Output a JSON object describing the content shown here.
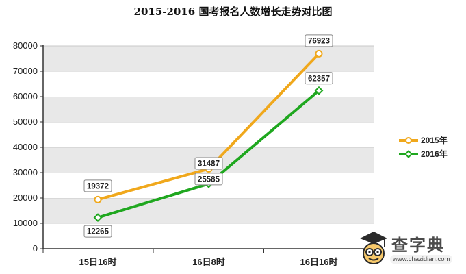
{
  "chart_data": {
    "type": "line",
    "title": "2015-2016 国考报名人数增长走势对比图",
    "categories": [
      "15日16时",
      "16日8时",
      "16日16时"
    ],
    "series": [
      {
        "name": "2015年",
        "values": [
          19372,
          31487,
          76923
        ],
        "color": "#f0a81c",
        "marker": "circle"
      },
      {
        "name": "2016年",
        "values": [
          12265,
          25585,
          62357
        ],
        "color": "#1fa71f",
        "marker": "diamond"
      }
    ],
    "ylim": [
      0,
      80000
    ],
    "yticks": [
      "0",
      "10000",
      "20000",
      "30000",
      "40000",
      "50000",
      "60000",
      "70000",
      "80000"
    ],
    "grid": "alternating horizontal bands",
    "legend": "right",
    "xlabel": "",
    "ylabel": ""
  },
  "watermark": {
    "name": "查字典",
    "url": "www.chazidian.com"
  }
}
